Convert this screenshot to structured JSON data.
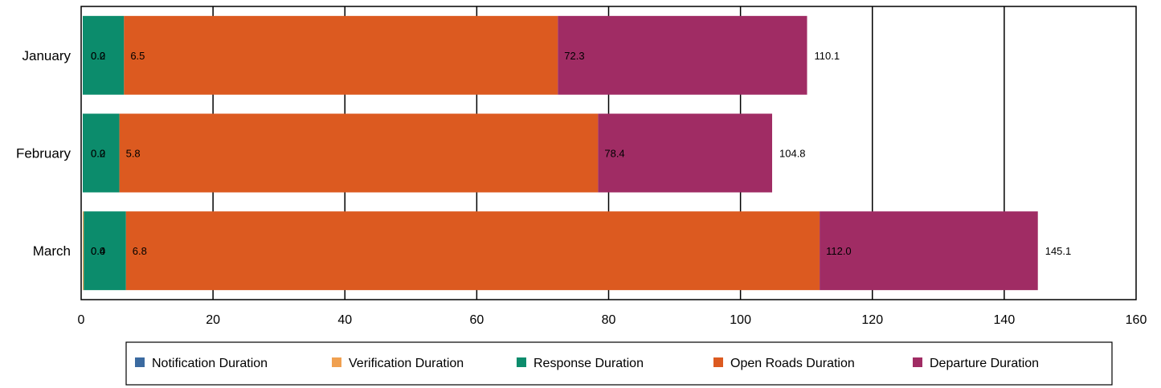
{
  "chart_data": {
    "type": "bar",
    "orientation": "horizontal",
    "stacked": true,
    "categories": [
      "January",
      "February",
      "March"
    ],
    "series": [
      {
        "name": "Notification Duration",
        "color": "#3b6aa0",
        "values": [
          0.0,
          0.0,
          0.0
        ],
        "labels": [
          "0.0",
          "0.0",
          "0.0"
        ]
      },
      {
        "name": "Verification Duration",
        "color": "#f0a050",
        "values": [
          0.2,
          0.2,
          0.4
        ],
        "labels": [
          "0.2",
          "0.2",
          "0.4"
        ]
      },
      {
        "name": "Response Duration",
        "color": "#0c8c6c",
        "values": [
          6.3,
          5.6,
          6.4
        ],
        "labels": [
          "6.5",
          "5.8",
          "6.8"
        ]
      },
      {
        "name": "Open Roads Duration",
        "color": "#dc5a20",
        "values": [
          65.8,
          72.6,
          105.2
        ],
        "labels": [
          "72.3",
          "78.4",
          "112.0"
        ]
      },
      {
        "name": "Departure Duration",
        "color": "#a02c64",
        "values": [
          37.8,
          26.4,
          33.1
        ],
        "labels": [
          "110.1",
          "104.8",
          "145.1"
        ]
      }
    ],
    "xlim": [
      0,
      160
    ],
    "xticks": [
      "0",
      "20",
      "40",
      "60",
      "80",
      "100",
      "120",
      "140",
      "160"
    ],
    "grid": "vertical",
    "legend_position": "bottom",
    "title": "",
    "xlabel": "",
    "ylabel": ""
  }
}
